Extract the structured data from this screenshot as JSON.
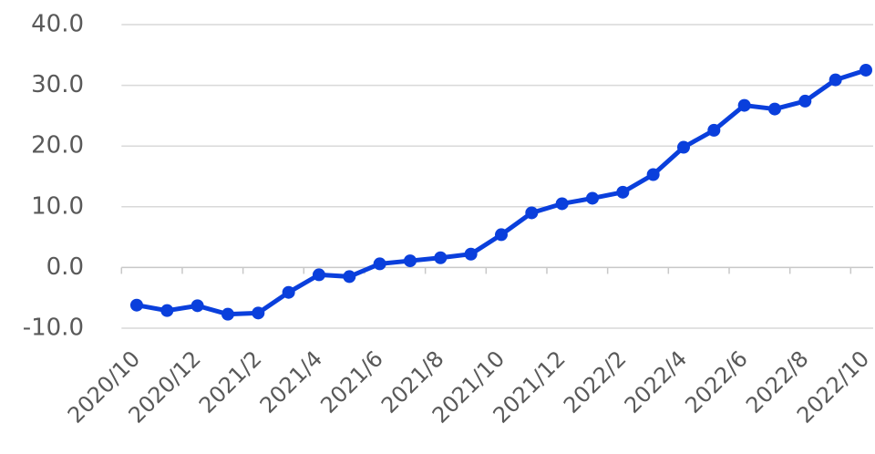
{
  "chart_data": {
    "type": "line",
    "categories": [
      "2020/10",
      null,
      "2020/12",
      null,
      "2021/2",
      null,
      "2021/4",
      null,
      "2021/6",
      null,
      "2021/8",
      null,
      "2021/10",
      null,
      "2021/12",
      null,
      "2022/2",
      null,
      "2022/4",
      null,
      "2022/6",
      null,
      "2022/8",
      null,
      "2022/10"
    ],
    "series": [
      {
        "color": "#0a3fdc",
        "values": [
          -6.2,
          -7.1,
          -6.3,
          -7.7,
          -7.5,
          -4.1,
          -1.2,
          -1.5,
          0.6,
          1.1,
          1.6,
          2.2,
          5.4,
          9.0,
          10.5,
          11.4,
          12.4,
          15.3,
          19.8,
          22.6,
          26.7,
          26.1,
          27.4,
          30.9,
          32.5
        ]
      }
    ],
    "ylim": [
      -10,
      40
    ],
    "yticks": [
      {
        "value": -10,
        "label": "-10.0"
      },
      {
        "value": 0,
        "label": "0.0"
      },
      {
        "value": 10,
        "label": "10.0"
      },
      {
        "value": 20,
        "label": "20.0"
      },
      {
        "value": 30,
        "label": "30.0"
      },
      {
        "value": 40,
        "label": "40.0"
      }
    ],
    "grid": true
  }
}
